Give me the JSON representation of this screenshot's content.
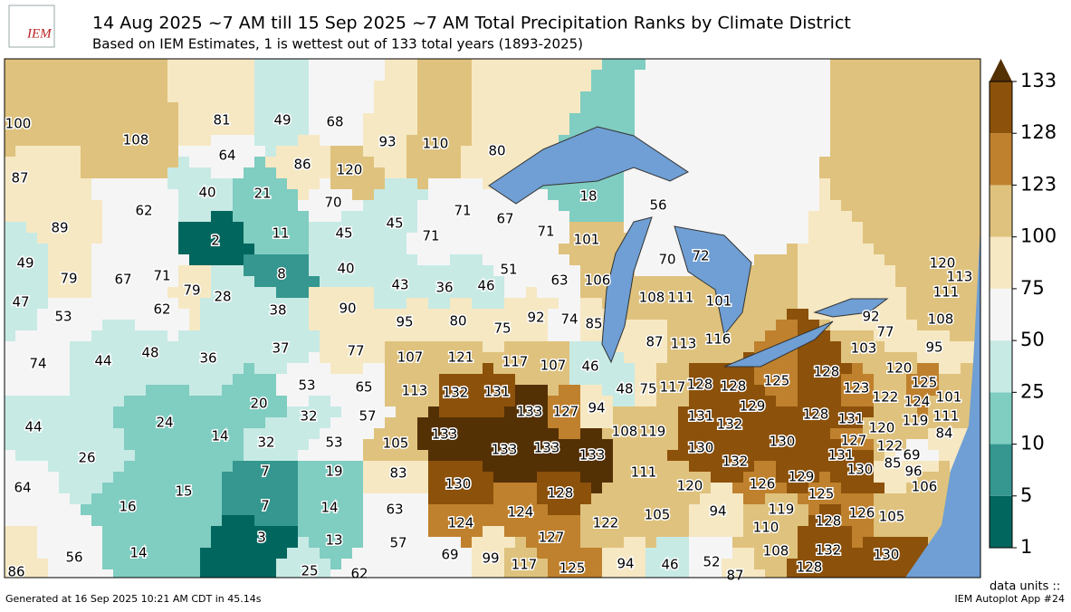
{
  "header": {
    "logo": "IEM",
    "title": "14 Aug 2025 ~7 AM till 15 Sep 2025 ~7 AM Total Precipitation Ranks by Climate District",
    "subtitle": "Based on IEM Estimates, 1 is wettest out of 133 total years (1893-2025)"
  },
  "colorbar": {
    "ticks": [
      1,
      5,
      10,
      25,
      50,
      75,
      100,
      123,
      128,
      133
    ],
    "colors": [
      "#01665e",
      "#35978f",
      "#80cdc1",
      "#c7eae5",
      "#f5f5f5",
      "#f6e8c3",
      "#dfc27d",
      "#bf812d",
      "#8c510a"
    ],
    "extend_color": "#543005",
    "units_label": "data units ::"
  },
  "districts": [
    100,
    108,
    81,
    49,
    68,
    93,
    110,
    80,
    87,
    64,
    86,
    120,
    62,
    40,
    21,
    70,
    18,
    56,
    89,
    45,
    71,
    67,
    71,
    71,
    2,
    11,
    45,
    101,
    70,
    72,
    49,
    79,
    67,
    71,
    40,
    8,
    51,
    47,
    53,
    62,
    79,
    28,
    38,
    43,
    36,
    46,
    63,
    106,
    108,
    111,
    101,
    120,
    113,
    111,
    90,
    95,
    80,
    75,
    92,
    74,
    85,
    92,
    77,
    108,
    74,
    44,
    48,
    36,
    37,
    77,
    107,
    121,
    117,
    107,
    46,
    87,
    113,
    116,
    103,
    95,
    128,
    120,
    125,
    53,
    65,
    113,
    132,
    131,
    48,
    75,
    117,
    128,
    128,
    125,
    123,
    122,
    124,
    101,
    44,
    24,
    20,
    32,
    57,
    133,
    127,
    94,
    129,
    131,
    132,
    128,
    131,
    119,
    120,
    111,
    84,
    14,
    133,
    108,
    119,
    32,
    53,
    105,
    127,
    130,
    122,
    69,
    26,
    133,
    133,
    133,
    130,
    131,
    132,
    130,
    85,
    96,
    106,
    7,
    19,
    83,
    111,
    129,
    64,
    15,
    130,
    126,
    125,
    120,
    128,
    16,
    7,
    14,
    63,
    105,
    94,
    119,
    126,
    105,
    124,
    124,
    122,
    110,
    128,
    3,
    13,
    57,
    127,
    14,
    56,
    69,
    99,
    108,
    132,
    130,
    117,
    125,
    94,
    46,
    52,
    86,
    25,
    62,
    87,
    128
  ],
  "footer": {
    "generated": "Generated at 16 Sep 2025 10:21 AM CDT in 45.14s",
    "app": "IEM Autoplot App #24"
  }
}
